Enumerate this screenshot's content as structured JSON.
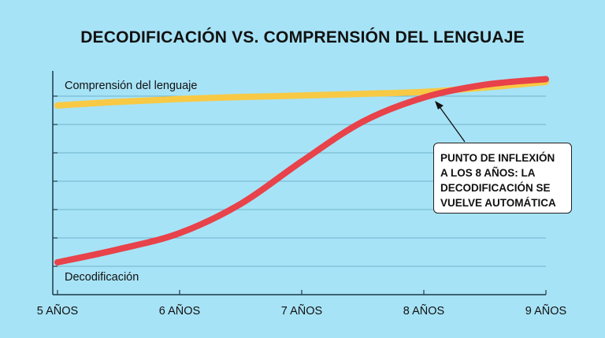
{
  "chart_data": {
    "type": "line",
    "title": "DECODIFICACIÓN VS. COMPRENSIÓN DEL LENGUAJE",
    "xlabel": "",
    "ylabel": "",
    "x": [
      5,
      5.5,
      6,
      6.5,
      7,
      7.5,
      8,
      8.5,
      9
    ],
    "x_tick_labels": [
      "5 AÑOS",
      "6 AÑOS",
      "7 AÑOS",
      "8 AÑOS",
      "9 AÑOS"
    ],
    "xlim": [
      5,
      9
    ],
    "ylim": [
      0,
      8
    ],
    "grid": true,
    "series": [
      {
        "name": "Comprensión del lenguaje",
        "color": "#f8c944",
        "values": [
          6.67,
          6.8,
          6.9,
          6.97,
          7.02,
          7.08,
          7.15,
          7.3,
          7.5
        ]
      },
      {
        "name": "Decodificación",
        "color": "#e8424a",
        "values": [
          1.14,
          1.6,
          2.17,
          3.2,
          4.7,
          6.1,
          6.95,
          7.4,
          7.6
        ]
      }
    ],
    "annotation": {
      "lines": [
        "PUNTO DE INFLEXIÓN",
        "A LOS 8 AÑOS: LA",
        "DECODIFICACIÓN SE",
        "VUELVE AUTOMÁTICA"
      ],
      "points_to_x": 8
    }
  }
}
